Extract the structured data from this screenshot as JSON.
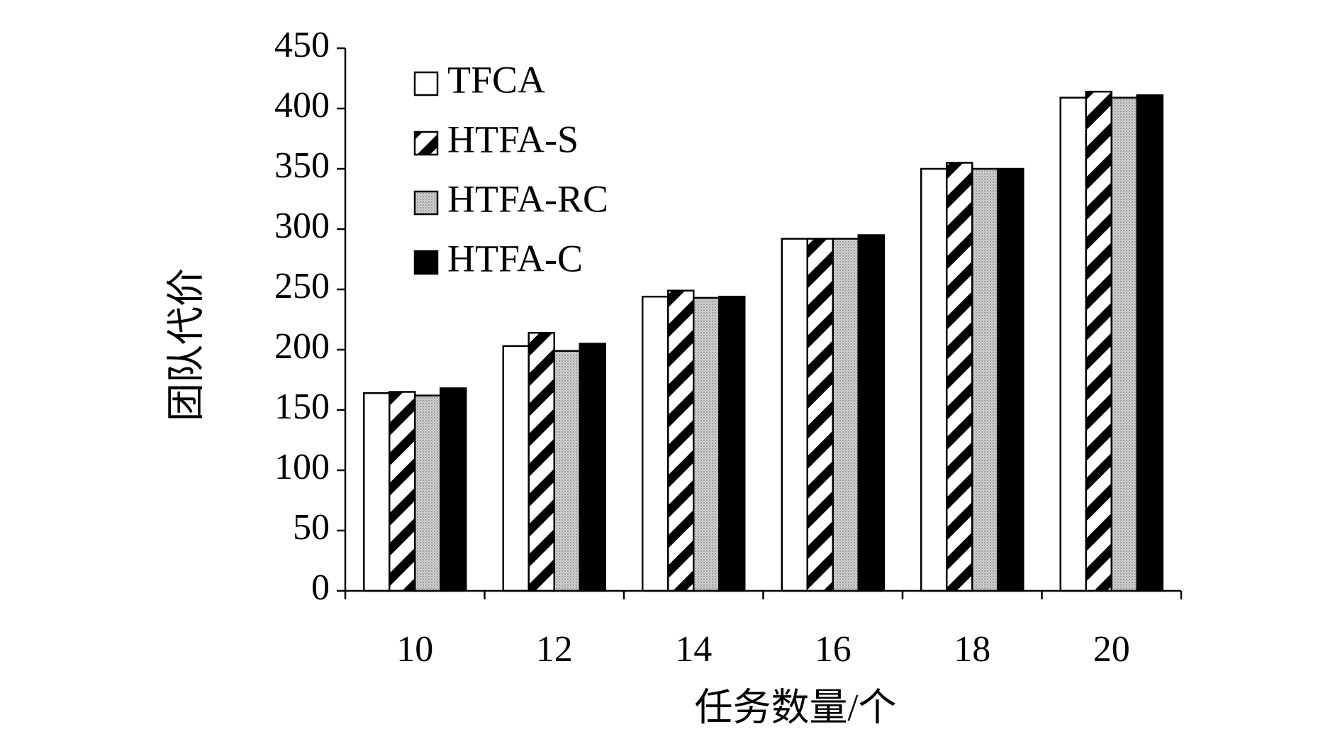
{
  "chart_data": {
    "type": "bar",
    "title": "",
    "xlabel": "任务数量/个",
    "ylabel": "团队代价",
    "ylim": [
      0,
      450
    ],
    "yticks": [
      0,
      50,
      100,
      150,
      200,
      250,
      300,
      350,
      400,
      450
    ],
    "categories": [
      "10",
      "12",
      "14",
      "16",
      "18",
      "20"
    ],
    "grid": false,
    "legend_position": "top-left",
    "series": [
      {
        "name": "TFCA",
        "pattern": "white",
        "values": [
          164,
          203,
          244,
          292,
          350,
          409
        ]
      },
      {
        "name": "HTFA-S",
        "pattern": "hatched",
        "values": [
          165,
          214,
          249,
          292,
          355,
          414
        ]
      },
      {
        "name": "HTFA-RC",
        "pattern": "dotted",
        "values": [
          162,
          199,
          243,
          292,
          350,
          409
        ]
      },
      {
        "name": "HTFA-C",
        "pattern": "black",
        "values": [
          168,
          205,
          244,
          295,
          350,
          411
        ]
      }
    ]
  }
}
